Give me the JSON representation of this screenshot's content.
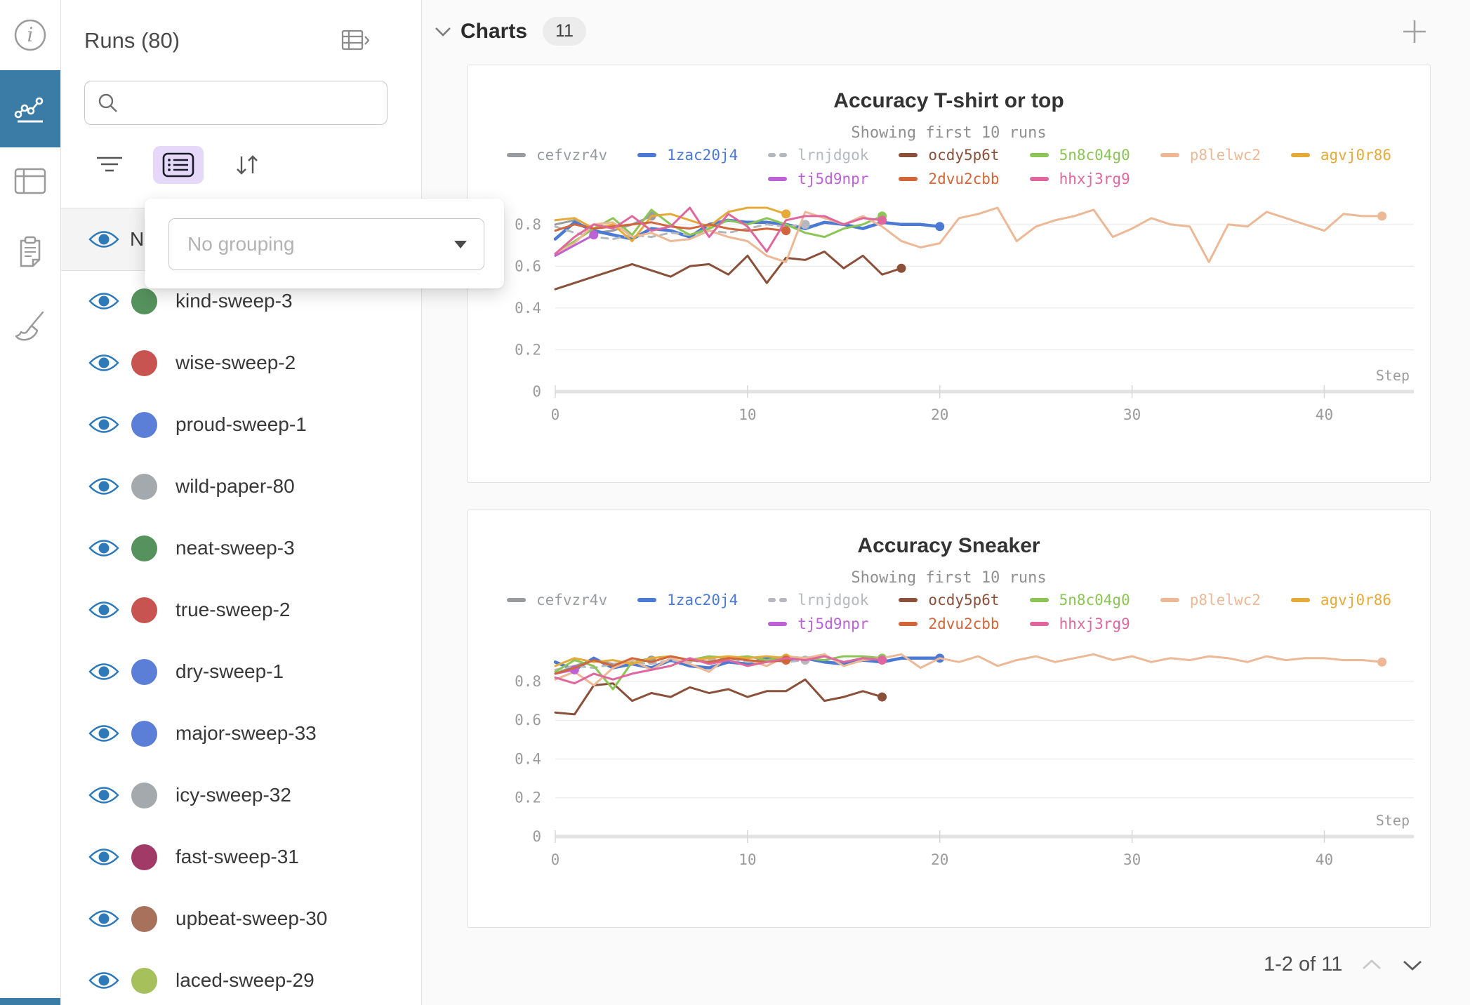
{
  "theme": {
    "accent_color": "#3a7ca5",
    "active_filter_bg": "#e5d8f8",
    "eye_color": "#2e7ab9"
  },
  "rail": {
    "items": [
      {
        "icon": "info-icon",
        "active": false
      },
      {
        "icon": "line-chart-icon",
        "active": true
      },
      {
        "icon": "panel-table-icon",
        "active": false
      },
      {
        "icon": "clipboard-icon",
        "active": false
      },
      {
        "icon": "broom-icon",
        "active": false
      }
    ]
  },
  "runs_panel": {
    "title": "Runs (80)",
    "expand_icon": "table-chevron-icon",
    "search": {
      "placeholder": "",
      "value": ""
    },
    "filter_bar": {
      "icons": [
        "filter-icon",
        "list-settings-icon",
        "sort-icon"
      ]
    },
    "header_row": {
      "label": "Name"
    },
    "grouping_popup": {
      "value": "No grouping"
    },
    "runs": [
      {
        "name": "kind-sweep-3",
        "color": "#55925d"
      },
      {
        "name": "wise-sweep-2",
        "color": "#c85451"
      },
      {
        "name": "proud-sweep-1",
        "color": "#5b7fd6"
      },
      {
        "name": "wild-paper-80",
        "color": "#a4a9ae"
      },
      {
        "name": "neat-sweep-3",
        "color": "#55925d"
      },
      {
        "name": "true-sweep-2",
        "color": "#c85451"
      },
      {
        "name": "dry-sweep-1",
        "color": "#5b7fd6"
      },
      {
        "name": "major-sweep-33",
        "color": "#5b7fd6"
      },
      {
        "name": "icy-sweep-32",
        "color": "#a4a9ae"
      },
      {
        "name": "fast-sweep-31",
        "color": "#a23a67"
      },
      {
        "name": "upbeat-sweep-30",
        "color": "#a7715b"
      },
      {
        "name": "laced-sweep-29",
        "color": "#a6c05c"
      }
    ]
  },
  "main": {
    "header": {
      "title": "Charts",
      "count": "11"
    },
    "pagination": {
      "label": "1-2 of 11"
    }
  },
  "chart_data": [
    {
      "type": "line",
      "title": "Accuracy T-shirt or top",
      "subtitle": "Showing first 10 runs",
      "xlabel": "Step",
      "ylabel": "",
      "xlim": [
        0,
        44
      ],
      "ylim": [
        0,
        0.9
      ],
      "xticks": [
        0,
        10,
        20,
        30,
        40
      ],
      "yticks": [
        0,
        0.2,
        0.4,
        0.6,
        0.8
      ],
      "grid": true,
      "legend_position": "top",
      "legend_rows": [
        7,
        3
      ],
      "series": [
        {
          "name": "cefvzr4v",
          "color": "#999c9f",
          "end_dot": true,
          "x": [
            0,
            1,
            2,
            3,
            4,
            5
          ],
          "y": [
            0.8,
            0.82,
            0.76,
            0.77,
            0.8,
            0.84
          ]
        },
        {
          "name": "1zac20j4",
          "color": "#4b7ad5",
          "width": 4.5,
          "end_dot": true,
          "x": [
            0,
            1,
            2,
            3,
            4,
            5,
            6,
            7,
            8,
            9,
            10,
            11,
            12,
            13,
            14,
            15,
            16,
            17,
            18,
            19,
            20
          ],
          "y": [
            0.73,
            0.81,
            0.77,
            0.75,
            0.73,
            0.78,
            0.77,
            0.74,
            0.8,
            0.82,
            0.81,
            0.81,
            0.8,
            0.78,
            0.81,
            0.8,
            0.78,
            0.81,
            0.8,
            0.8,
            0.79
          ]
        },
        {
          "name": "lrnjdgok",
          "color": "#b5b8bc",
          "dash": true,
          "end_dot": true,
          "x": [
            0,
            1,
            2,
            3,
            4,
            5,
            6,
            7,
            8,
            9,
            10,
            11,
            12,
            13
          ],
          "y": [
            0.79,
            0.76,
            0.74,
            0.73,
            0.75,
            0.74,
            0.76,
            0.75,
            0.77,
            0.76,
            0.78,
            0.8,
            0.79,
            0.8
          ]
        },
        {
          "name": "ocdy5p6t",
          "color": "#8a5039",
          "end_dot": true,
          "x": [
            0,
            1,
            2,
            3,
            4,
            5,
            6,
            7,
            8,
            9,
            10,
            11,
            12,
            13,
            14,
            15,
            16,
            17,
            18
          ],
          "y": [
            0.49,
            0.52,
            0.55,
            0.58,
            0.61,
            0.58,
            0.55,
            0.6,
            0.61,
            0.56,
            0.65,
            0.52,
            0.64,
            0.63,
            0.67,
            0.59,
            0.65,
            0.56,
            0.59
          ]
        },
        {
          "name": "5n8c04g0",
          "color": "#8ac555",
          "end_dot": true,
          "x": [
            0,
            1,
            2,
            3,
            4,
            5,
            6,
            7,
            8,
            9,
            10,
            11,
            12,
            13,
            14,
            15,
            16,
            17
          ],
          "y": [
            0.66,
            0.72,
            0.78,
            0.83,
            0.75,
            0.87,
            0.8,
            0.75,
            0.78,
            0.82,
            0.8,
            0.83,
            0.8,
            0.76,
            0.74,
            0.78,
            0.8,
            0.84
          ]
        },
        {
          "name": "p8lelwc2",
          "color": "#ecb896",
          "end_dot": true,
          "x": [
            0,
            1,
            2,
            3,
            4,
            5,
            6,
            7,
            8,
            9,
            10,
            11,
            12,
            13,
            14,
            15,
            16,
            17,
            18,
            19,
            20,
            21,
            22,
            23,
            24,
            25,
            26,
            27,
            28,
            29,
            30,
            31,
            32,
            33,
            34,
            35,
            36,
            37,
            38,
            39,
            40,
            41,
            42,
            43
          ],
          "y": [
            0.66,
            0.71,
            0.8,
            0.81,
            0.74,
            0.76,
            0.72,
            0.73,
            0.77,
            0.74,
            0.72,
            0.65,
            0.62,
            0.86,
            0.83,
            0.8,
            0.84,
            0.79,
            0.72,
            0.69,
            0.71,
            0.83,
            0.85,
            0.88,
            0.72,
            0.79,
            0.82,
            0.84,
            0.87,
            0.74,
            0.78,
            0.83,
            0.8,
            0.79,
            0.62,
            0.8,
            0.79,
            0.86,
            0.83,
            0.8,
            0.77,
            0.85,
            0.84,
            0.84
          ]
        },
        {
          "name": "agvj0r86",
          "color": "#e5aa38",
          "end_dot": true,
          "x": [
            0,
            1,
            2,
            3,
            4,
            5,
            6,
            7,
            8,
            9,
            10,
            11,
            12
          ],
          "y": [
            0.82,
            0.83,
            0.78,
            0.8,
            0.72,
            0.84,
            0.85,
            0.82,
            0.79,
            0.86,
            0.88,
            0.88,
            0.85
          ]
        },
        {
          "name": "tj5d9npr",
          "color": "#bc61d6",
          "end_dot": true,
          "x": [
            0,
            1,
            2
          ],
          "y": [
            0.65,
            0.7,
            0.75
          ]
        },
        {
          "name": "2dvu2cbb",
          "color": "#d2653a",
          "end_dot": true,
          "x": [
            0,
            1,
            2,
            3,
            4,
            5,
            6,
            7,
            8,
            9,
            10,
            11,
            12
          ],
          "y": [
            0.77,
            0.8,
            0.78,
            0.79,
            0.8,
            0.81,
            0.79,
            0.78,
            0.8,
            0.78,
            0.77,
            0.78,
            0.77
          ]
        },
        {
          "name": "hhxj3rg9",
          "color": "#e0679d",
          "end_dot": true,
          "x": [
            0,
            1,
            2,
            3,
            4,
            5,
            6,
            7,
            8,
            9,
            10,
            11,
            12,
            13,
            14,
            15,
            16,
            17
          ],
          "y": [
            0.66,
            0.74,
            0.8,
            0.78,
            0.84,
            0.77,
            0.79,
            0.88,
            0.74,
            0.85,
            0.79,
            0.67,
            0.82,
            0.84,
            0.84,
            0.8,
            0.83,
            0.82
          ]
        }
      ]
    },
    {
      "type": "line",
      "title": "Accuracy Sneaker",
      "subtitle": "Showing first 10 runs",
      "xlabel": "Step",
      "ylabel": "",
      "xlim": [
        0,
        44
      ],
      "ylim": [
        0,
        0.97
      ],
      "xticks": [
        0,
        10,
        20,
        30,
        40
      ],
      "yticks": [
        0,
        0.2,
        0.4,
        0.6,
        0.8
      ],
      "grid": true,
      "legend_position": "top",
      "legend_rows": [
        7,
        3
      ],
      "series": [
        {
          "name": "cefvzr4v",
          "color": "#999c9f",
          "end_dot": true,
          "x": [
            0,
            1,
            2,
            3,
            4,
            5
          ],
          "y": [
            0.84,
            0.88,
            0.91,
            0.89,
            0.9,
            0.91
          ]
        },
        {
          "name": "1zac20j4",
          "color": "#4b7ad5",
          "width": 4.5,
          "end_dot": true,
          "x": [
            0,
            1,
            2,
            3,
            4,
            5,
            6,
            7,
            8,
            9,
            10,
            11,
            12,
            13,
            14,
            15,
            16,
            17,
            18,
            19,
            20
          ],
          "y": [
            0.9,
            0.86,
            0.92,
            0.87,
            0.89,
            0.87,
            0.91,
            0.88,
            0.87,
            0.9,
            0.89,
            0.92,
            0.91,
            0.92,
            0.9,
            0.89,
            0.91,
            0.9,
            0.92,
            0.92,
            0.92
          ]
        },
        {
          "name": "lrnjdgok",
          "color": "#b5b8bc",
          "dash": true,
          "end_dot": true,
          "x": [
            0,
            1,
            2,
            3,
            4,
            5,
            6,
            7,
            8,
            9,
            10,
            11,
            12,
            13
          ],
          "y": [
            0.86,
            0.88,
            0.87,
            0.89,
            0.9,
            0.89,
            0.91,
            0.9,
            0.91,
            0.92,
            0.9,
            0.91,
            0.9,
            0.91
          ]
        },
        {
          "name": "ocdy5p6t",
          "color": "#8a5039",
          "end_dot": true,
          "x": [
            0,
            1,
            2,
            3,
            4,
            5,
            6,
            7,
            8,
            9,
            10,
            11,
            12,
            13,
            14,
            15,
            16,
            17
          ],
          "y": [
            0.64,
            0.63,
            0.78,
            0.79,
            0.7,
            0.74,
            0.72,
            0.77,
            0.74,
            0.76,
            0.72,
            0.75,
            0.75,
            0.81,
            0.7,
            0.72,
            0.75,
            0.72
          ]
        },
        {
          "name": "5n8c04g0",
          "color": "#8ac555",
          "end_dot": true,
          "x": [
            0,
            1,
            2,
            3,
            4,
            5,
            6,
            7,
            8,
            9,
            10,
            11,
            12,
            13,
            14,
            15,
            16,
            17
          ],
          "y": [
            0.85,
            0.91,
            0.88,
            0.76,
            0.9,
            0.92,
            0.93,
            0.91,
            0.93,
            0.92,
            0.93,
            0.91,
            0.93,
            0.92,
            0.91,
            0.93,
            0.93,
            0.92
          ]
        },
        {
          "name": "p8lelwc2",
          "color": "#ecb896",
          "end_dot": true,
          "x": [
            0,
            1,
            2,
            3,
            4,
            5,
            6,
            7,
            8,
            9,
            10,
            11,
            12,
            13,
            14,
            15,
            16,
            17,
            18,
            19,
            20,
            21,
            22,
            23,
            24,
            25,
            26,
            27,
            28,
            29,
            30,
            31,
            32,
            33,
            34,
            35,
            36,
            37,
            38,
            39,
            40,
            41,
            42,
            43
          ],
          "y": [
            0.81,
            0.85,
            0.78,
            0.87,
            0.91,
            0.86,
            0.92,
            0.89,
            0.85,
            0.93,
            0.91,
            0.88,
            0.93,
            0.92,
            0.94,
            0.88,
            0.91,
            0.92,
            0.94,
            0.87,
            0.92,
            0.9,
            0.93,
            0.88,
            0.91,
            0.93,
            0.9,
            0.92,
            0.94,
            0.91,
            0.93,
            0.9,
            0.92,
            0.91,
            0.93,
            0.92,
            0.9,
            0.93,
            0.91,
            0.92,
            0.92,
            0.91,
            0.91,
            0.9
          ]
        },
        {
          "name": "agvj0r86",
          "color": "#e5aa38",
          "end_dot": true,
          "x": [
            0,
            1,
            2,
            3,
            4,
            5,
            6,
            7,
            8,
            9,
            10,
            11,
            12
          ],
          "y": [
            0.88,
            0.92,
            0.9,
            0.91,
            0.89,
            0.92,
            0.93,
            0.91,
            0.92,
            0.93,
            0.92,
            0.93,
            0.92
          ]
        },
        {
          "name": "tj5d9npr",
          "color": "#bc61d6",
          "end_dot": true,
          "x": [
            0,
            1
          ],
          "y": [
            0.84,
            0.86
          ]
        },
        {
          "name": "2dvu2cbb",
          "color": "#d2653a",
          "end_dot": true,
          "x": [
            0,
            1,
            2,
            3,
            4,
            5,
            6,
            7,
            8,
            9,
            10,
            11,
            12
          ],
          "y": [
            0.84,
            0.87,
            0.91,
            0.88,
            0.92,
            0.9,
            0.93,
            0.91,
            0.9,
            0.92,
            0.91,
            0.9,
            0.91
          ]
        },
        {
          "name": "hhxj3rg9",
          "color": "#e0679d",
          "end_dot": true,
          "x": [
            0,
            1,
            2,
            3,
            4,
            5,
            6,
            7,
            8,
            9,
            10,
            11,
            12,
            13,
            14,
            15,
            16,
            17
          ],
          "y": [
            0.82,
            0.79,
            0.84,
            0.81,
            0.84,
            0.86,
            0.88,
            0.92,
            0.89,
            0.91,
            0.88,
            0.9,
            0.92,
            0.91,
            0.93,
            0.9,
            0.92,
            0.91
          ]
        }
      ]
    }
  ]
}
